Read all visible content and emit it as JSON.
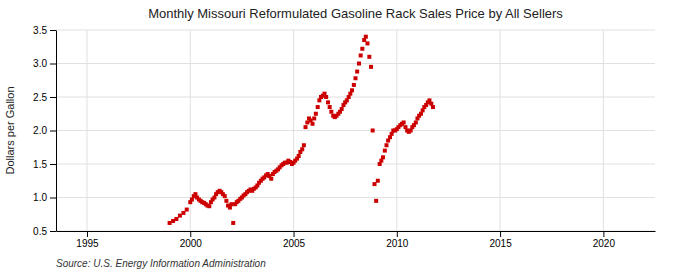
{
  "chart_data": {
    "type": "scatter",
    "title": "Monthly Missouri Reformulated Gasoline Rack Sales Price by All Sellers",
    "ylabel": "Dollars per Gallon",
    "source": "Source: U.S. Energy Information Administration",
    "color": "#cc0000",
    "marker": "square",
    "grid": true,
    "xlim": [
      1993.5,
      2022.5
    ],
    "ylim": [
      0.5,
      3.5
    ],
    "xticks": [
      1995,
      2000,
      2005,
      2010,
      2015,
      2020
    ],
    "yticks": [
      0.5,
      {
        "value": 1.0,
        "label": "1.0"
      },
      1.5,
      {
        "value": 2.0,
        "label": "2.0"
      },
      2.5,
      {
        "value": 3.0,
        "label": "3.0"
      },
      3.5
    ],
    "x": [
      1999.0,
      1999.17,
      1999.33,
      1999.5,
      1999.67,
      1999.83,
      2000.0,
      2000.08,
      2000.17,
      2000.25,
      2000.33,
      2000.42,
      2000.5,
      2000.58,
      2000.67,
      2000.75,
      2000.83,
      2000.92,
      2001.0,
      2001.08,
      2001.17,
      2001.25,
      2001.33,
      2001.42,
      2001.5,
      2001.58,
      2001.67,
      2001.75,
      2001.83,
      2001.92,
      2002.0,
      2002.08,
      2002.17,
      2002.25,
      2002.33,
      2002.42,
      2002.5,
      2002.58,
      2002.67,
      2002.75,
      2002.83,
      2002.92,
      2003.0,
      2003.08,
      2003.17,
      2003.25,
      2003.33,
      2003.42,
      2003.5,
      2003.58,
      2003.67,
      2003.75,
      2003.83,
      2003.92,
      2004.0,
      2004.08,
      2004.17,
      2004.25,
      2004.33,
      2004.42,
      2004.5,
      2004.58,
      2004.67,
      2004.75,
      2004.83,
      2004.92,
      2005.0,
      2005.08,
      2005.17,
      2005.25,
      2005.33,
      2005.42,
      2005.5,
      2005.58,
      2005.67,
      2005.75,
      2005.83,
      2005.92,
      2006.0,
      2006.08,
      2006.17,
      2006.25,
      2006.33,
      2006.42,
      2006.5,
      2006.58,
      2006.67,
      2006.75,
      2006.83,
      2006.92,
      2007.0,
      2007.08,
      2007.17,
      2007.25,
      2007.33,
      2007.42,
      2007.5,
      2007.58,
      2007.67,
      2007.75,
      2007.83,
      2007.92,
      2008.0,
      2008.08,
      2008.17,
      2008.25,
      2008.33,
      2008.42,
      2008.5,
      2008.58,
      2008.67,
      2008.75,
      2008.83,
      2008.92,
      2009.0,
      2009.08,
      2009.17,
      2009.25,
      2009.33,
      2009.42,
      2009.5,
      2009.58,
      2009.67,
      2009.75,
      2009.83,
      2009.92,
      2010.0,
      2010.08,
      2010.17,
      2010.25,
      2010.33,
      2010.42,
      2010.5,
      2010.58,
      2010.67,
      2010.75,
      2010.83,
      2010.92,
      2011.0,
      2011.08,
      2011.17,
      2011.25,
      2011.33,
      2011.42,
      2011.5,
      2011.58,
      2011.67,
      2011.75
    ],
    "values": [
      0.62,
      0.65,
      0.68,
      0.73,
      0.77,
      0.82,
      0.93,
      0.97,
      1.02,
      1.05,
      1.0,
      0.97,
      0.95,
      0.93,
      0.92,
      0.9,
      0.88,
      0.87,
      0.93,
      0.97,
      1.0,
      1.05,
      1.08,
      1.1,
      1.08,
      1.05,
      1.02,
      0.95,
      0.88,
      0.85,
      0.9,
      0.62,
      0.9,
      0.93,
      0.95,
      0.98,
      1.0,
      1.03,
      1.05,
      1.08,
      1.1,
      1.12,
      1.1,
      1.13,
      1.15,
      1.18,
      1.22,
      1.25,
      1.28,
      1.3,
      1.33,
      1.35,
      1.32,
      1.28,
      1.35,
      1.38,
      1.4,
      1.42,
      1.45,
      1.48,
      1.5,
      1.52,
      1.52,
      1.55,
      1.53,
      1.5,
      1.52,
      1.55,
      1.58,
      1.62,
      1.68,
      1.72,
      1.78,
      2.05,
      2.12,
      2.18,
      2.15,
      2.1,
      2.18,
      2.25,
      2.35,
      2.45,
      2.5,
      2.52,
      2.55,
      2.5,
      2.42,
      2.35,
      2.28,
      2.22,
      2.2,
      2.22,
      2.25,
      2.28,
      2.32,
      2.38,
      2.42,
      2.45,
      2.5,
      2.55,
      2.6,
      2.68,
      2.78,
      2.88,
      3.0,
      3.12,
      3.22,
      3.35,
      3.4,
      3.3,
      3.1,
      2.95,
      2.0,
      1.2,
      0.95,
      1.25,
      1.5,
      1.55,
      1.6,
      1.7,
      1.78,
      1.85,
      1.9,
      1.95,
      2.0,
      2.0,
      2.02,
      2.05,
      2.08,
      2.1,
      2.12,
      2.05,
      2.0,
      1.98,
      2.0,
      2.05,
      2.08,
      2.12,
      2.18,
      2.22,
      2.25,
      2.3,
      2.35,
      2.38,
      2.42,
      2.45,
      2.4,
      2.35
    ]
  }
}
